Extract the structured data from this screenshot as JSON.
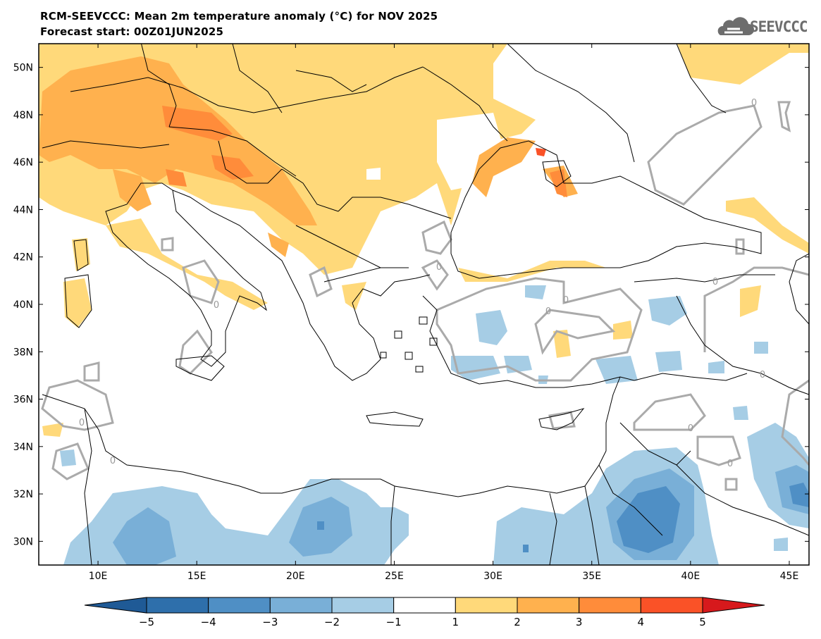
{
  "header": {
    "title_line1": "RCM-SEEVCCC: Mean 2m temperature anomaly (°C) for NOV 2025",
    "title_line2": "Forecast start: 00Z01JUN2025"
  },
  "logo": {
    "text": "SEEVCCC",
    "icon": "cloud-icon"
  },
  "map": {
    "lon_range": [
      7,
      46
    ],
    "lat_range": [
      29,
      51
    ],
    "lon_ticks": [
      {
        "value": 10,
        "label": "10E"
      },
      {
        "value": 15,
        "label": "15E"
      },
      {
        "value": 20,
        "label": "20E"
      },
      {
        "value": 25,
        "label": "25E"
      },
      {
        "value": 30,
        "label": "30E"
      },
      {
        "value": 35,
        "label": "35E"
      },
      {
        "value": 40,
        "label": "40E"
      },
      {
        "value": 45,
        "label": "45E"
      }
    ],
    "lat_ticks": [
      {
        "value": 30,
        "label": "30N"
      },
      {
        "value": 32,
        "label": "32N"
      },
      {
        "value": 34,
        "label": "34N"
      },
      {
        "value": 36,
        "label": "36N"
      },
      {
        "value": 38,
        "label": "38N"
      },
      {
        "value": 40,
        "label": "40N"
      },
      {
        "value": 42,
        "label": "42N"
      },
      {
        "value": 44,
        "label": "44N"
      },
      {
        "value": 46,
        "label": "46N"
      },
      {
        "value": 48,
        "label": "48N"
      },
      {
        "value": 50,
        "label": "50N"
      }
    ],
    "contour_label": "0"
  },
  "colorbar": {
    "colors": [
      "#1f5a96",
      "#2e6fab",
      "#4f8fc5",
      "#79afd7",
      "#a6cde5",
      "#ffffff",
      "#ffd97a",
      "#ffb14e",
      "#ff8c3a",
      "#fa5227",
      "#d7191c"
    ],
    "boundaries": [
      "−5",
      "−4",
      "−3",
      "−2",
      "−1",
      "1",
      "2",
      "3",
      "4",
      "5"
    ]
  }
}
